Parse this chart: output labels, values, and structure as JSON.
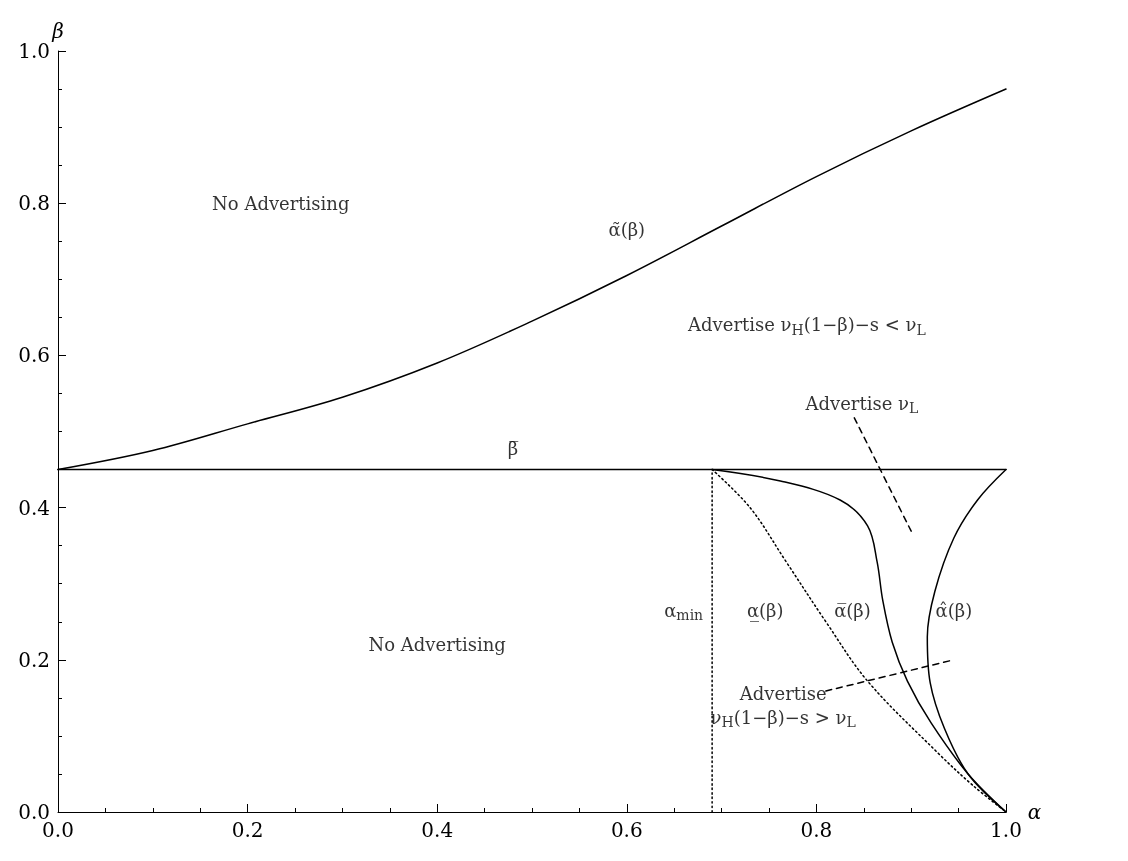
{
  "chart_data": {
    "type": "line",
    "xlabel": "α",
    "ylabel": "β",
    "xlim": [
      0,
      1
    ],
    "ylim": [
      0,
      1
    ],
    "xticks": [
      {
        "value": 0,
        "label": "0.0"
      },
      0.2,
      0.4,
      0.6,
      0.8,
      {
        "value": 1,
        "label": "1.0"
      }
    ],
    "yticks": [
      {
        "value": 0,
        "label": "0.0"
      },
      0.2,
      0.4,
      0.6,
      0.8,
      {
        "value": 1,
        "label": "1.0"
      }
    ],
    "grid": false,
    "marker": "none",
    "line_style": "solid",
    "series": [
      {
        "color": "#000000",
        "x": [
          0,
          0.1,
          0.2,
          0.3,
          0.4,
          0.5,
          0.6,
          0.7,
          0.8,
          0.9,
          1
        ],
        "values": [
          0.45,
          0.475,
          0.51,
          0.545,
          0.59,
          0.645,
          0.705,
          0.77,
          0.835,
          0.895,
          0.95
        ]
      },
      {
        "color": "#000000",
        "x": [
          0,
          1
        ],
        "values": [
          0.45,
          0.45
        ]
      },
      {
        "color": "#000000",
        "line_style": "dotted",
        "x": [
          0.69,
          0.69
        ],
        "values": [
          0,
          0.45
        ]
      },
      {
        "color": "#000000",
        "line_style": "dotted",
        "x": [
          0.69,
          0.73,
          0.768,
          0.81,
          0.854,
          0.927,
          0.965,
          1
        ],
        "values": [
          0.45,
          0.4,
          0.329,
          0.25,
          0.172,
          0.079,
          0.035,
          0
        ]
      },
      {
        "color": "#000000",
        "x": [
          0.69,
          0.762,
          0.825,
          0.854,
          0.864,
          0.87,
          0.88,
          0.896,
          0.921,
          0.96,
          1
        ],
        "values": [
          0.45,
          0.435,
          0.41,
          0.376,
          0.329,
          0.278,
          0.223,
          0.172,
          0.117,
          0.05,
          0
        ]
      },
      {
        "color": "#000000",
        "x": [
          1,
          0.97,
          0.945,
          0.925,
          0.917,
          0.92,
          0.935,
          0.96,
          1
        ],
        "values": [
          0.45,
          0.41,
          0.36,
          0.29,
          0.23,
          0.17,
          0.11,
          0.05,
          0
        ]
      },
      {
        "color": "#000000",
        "line_style": "dashed",
        "x": [
          0.84,
          0.9
        ],
        "values": [
          0.518,
          0.369
        ]
      },
      {
        "color": "#000000",
        "line_style": "dashed",
        "x": [
          0.81,
          0.945
        ],
        "values": [
          0.159,
          0.2
        ]
      }
    ],
    "annotations": [
      "No Advertising",
      "α̃(β)",
      "Advertise ν$_{H}$(1−β)−s < ν$_{L}$",
      "Advertise ν$_{L}$",
      "β̅",
      "No Advertising",
      "α$_{min}$",
      "α̲(β)",
      "α̅(β)",
      "α̂(β)",
      "Advertise\nν$_{H}$(1−β)−s > ν$_{L}$"
    ]
  }
}
